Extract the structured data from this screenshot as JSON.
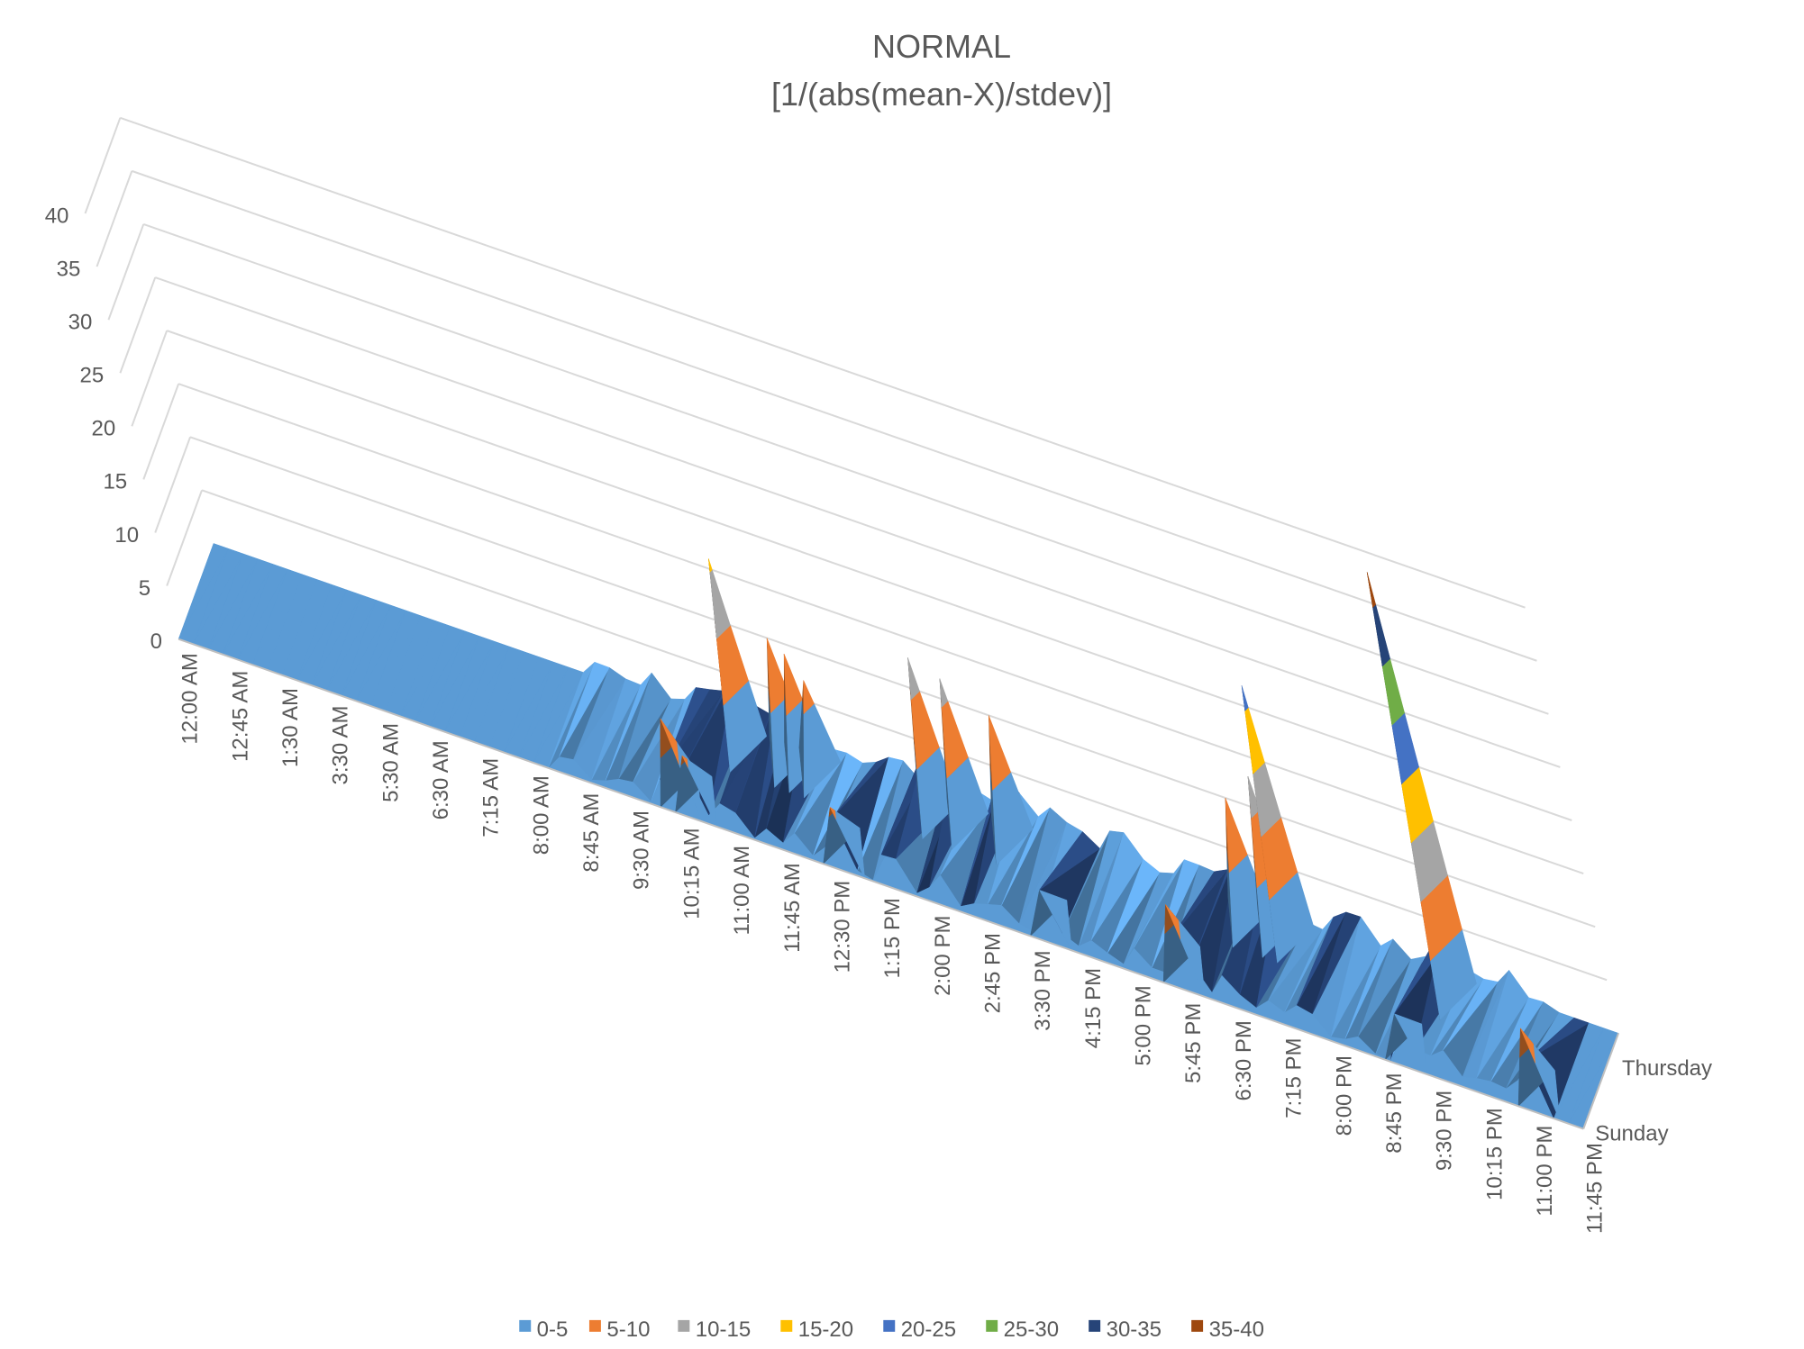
{
  "chart_data": {
    "type": "surface",
    "title": "NORMAL",
    "subtitle": "[1/(abs(mean-X)/stdev)]",
    "zlim": [
      0,
      40
    ],
    "z_ticks": [
      "0",
      "5",
      "10",
      "15",
      "20",
      "25",
      "30",
      "35",
      "40"
    ],
    "x_ticks": [
      "12:00 AM",
      "12:45 AM",
      "1:30 AM",
      "3:30 AM",
      "5:30 AM",
      "6:30 AM",
      "7:15 AM",
      "8:00 AM",
      "8:45 AM",
      "9:30 AM",
      "10:15 AM",
      "11:00 AM",
      "11:45 AM",
      "12:30 PM",
      "1:15 PM",
      "2:00 PM",
      "2:45 PM",
      "3:30 PM",
      "4:15 PM",
      "5:00 PM",
      "5:45 PM",
      "6:30 PM",
      "7:15 PM",
      "8:00 PM",
      "8:45 PM",
      "9:30 PM",
      "10:15 PM",
      "11:00 PM",
      "11:45 PM"
    ],
    "y_ticks": [
      "Sunday",
      "Thursday"
    ],
    "legend_position": "bottom",
    "legend": [
      {
        "label": "0-5",
        "color": "#5b9bd5"
      },
      {
        "label": "5-10",
        "color": "#ed7d31"
      },
      {
        "label": "10-15",
        "color": "#a5a5a5"
      },
      {
        "label": "15-20",
        "color": "#ffc000"
      },
      {
        "label": "20-25",
        "color": "#4472c4"
      },
      {
        "label": "25-30",
        "color": "#70ad47"
      },
      {
        "label": "30-35",
        "color": "#264478"
      },
      {
        "label": "35-40",
        "color": "#9e480e"
      }
    ],
    "peaks": [
      {
        "x": "8:30 AM",
        "y": "Sunday",
        "value": 9
      },
      {
        "x": "8:45 AM",
        "y": "Sunday",
        "value": 6
      },
      {
        "x": "9:00 AM",
        "y": "Thursday",
        "value": 16
      },
      {
        "x": "9:45 AM",
        "y": "Thursday",
        "value": 10
      },
      {
        "x": "10:00 AM",
        "y": "Thursday",
        "value": 9
      },
      {
        "x": "10:15 AM",
        "y": "Thursday",
        "value": 7
      },
      {
        "x": "11:15 AM",
        "y": "Sunday",
        "value": 6
      },
      {
        "x": "12:15 PM",
        "y": "Thursday",
        "value": 13
      },
      {
        "x": "12:45 PM",
        "y": "Thursday",
        "value": 12
      },
      {
        "x": "1:30 PM",
        "y": "Thursday",
        "value": 10
      },
      {
        "x": "2:45 PM",
        "y": "Sunday",
        "value": 5
      },
      {
        "x": "5:00 PM",
        "y": "Sunday",
        "value": 8
      },
      {
        "x": "5:30 PM",
        "y": "Thursday",
        "value": 10
      },
      {
        "x": "6:00 PM",
        "y": "Thursday",
        "value": 13
      },
      {
        "x": "6:15 PM",
        "y": "Thursday",
        "value": 22
      },
      {
        "x": "9:00 PM",
        "y": "Thursday",
        "value": 38
      },
      {
        "x": "8:45 PM",
        "y": "Sunday",
        "value": 5
      },
      {
        "x": "11:00 PM",
        "y": "Sunday",
        "value": 8
      }
    ]
  }
}
